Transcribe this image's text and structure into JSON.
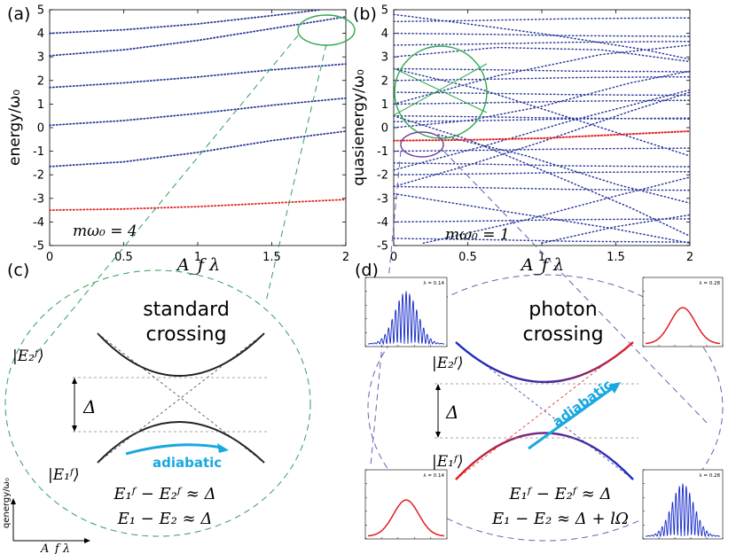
{
  "panels": {
    "a": {
      "label": "(a)",
      "ylabel": "energy/ω₀",
      "xlabel": "A_f λ",
      "annotation": "mω₀ = 4",
      "xticks": [
        "0",
        "0.5",
        "1",
        "1.5",
        "2"
      ],
      "yticks": [
        "5",
        "4",
        "3",
        "2",
        "1",
        "0",
        "-1",
        "-2",
        "-3",
        "-4",
        "-5"
      ]
    },
    "b": {
      "label": "(b)",
      "ylabel": "quasienergy/ω₀",
      "xlabel": "A_f λ",
      "annotation": "mω₀ = 1",
      "xticks": [
        "0",
        "0.5",
        "1",
        "1.5",
        "2"
      ],
      "yticks": [
        "5",
        "4",
        "3",
        "2",
        "1",
        "0",
        "-1",
        "-2",
        "-3",
        "-4",
        "-5"
      ]
    },
    "c": {
      "label": "(c)",
      "title_line1": "standard",
      "title_line2": "crossing",
      "upper_state": "|E₂ᶠ⟩",
      "lower_state": "|E₁ᶠ⟩",
      "gap": "Δ",
      "adiabatic": "adiabatic",
      "eq1": "E₁ᶠ − E₂ᶠ ≈ Δ",
      "eq2": "E₁ − E₂ ≈ Δ",
      "axis_y": "qenergy/ω₀",
      "axis_x": "A_f λ"
    },
    "d": {
      "label": "(d)",
      "title_line1": "photon",
      "title_line2": "crossing",
      "upper_state": "|E₂ᶠ⟩",
      "lower_state": "|E₁ᶠ⟩",
      "gap": "Δ",
      "adiabatic": "adiabatic",
      "eq1": "E₁ᶠ − E₂ᶠ ≈ Δ",
      "eq2": "E₁ − E₂ ≈ Δ + lΩ",
      "insets": [
        {
          "lambda": "λ = 0.14",
          "kind": "comb"
        },
        {
          "lambda": "λ = 0.28",
          "kind": "gauss"
        },
        {
          "lambda": "λ = 0.14",
          "kind": "gauss"
        },
        {
          "lambda": "λ = 0.28",
          "kind": "comb"
        }
      ]
    }
  },
  "colors": {
    "blue": "#2b3a9a",
    "red": "#e21f1f",
    "green": "#2fa84f",
    "purple": "#7a3f9a",
    "green_dash": "#2f9e5a",
    "purple_dash": "#6a5fb0",
    "cyan": "#19a8e0",
    "spectrum_blue": "#1428c8"
  },
  "chart_data": [
    {
      "type": "line",
      "title": "(a)",
      "xlabel": "A_f λ",
      "ylabel": "energy/ω₀",
      "xlim": [
        0,
        2
      ],
      "ylim": [
        -5,
        5
      ],
      "series": [
        {
          "x": [
            0,
            0.5,
            1,
            1.5,
            1.83
          ],
          "values": [
            4.0,
            4.15,
            4.4,
            4.75,
            5.0
          ]
        },
        {
          "x": [
            0,
            0.5,
            1,
            1.5,
            2
          ],
          "values": [
            3.05,
            3.3,
            3.7,
            4.2,
            4.7
          ]
        },
        {
          "x": [
            0,
            0.5,
            1,
            1.5,
            2
          ],
          "values": [
            1.7,
            1.9,
            2.15,
            2.45,
            2.7
          ]
        },
        {
          "x": [
            0,
            0.5,
            1,
            1.5,
            2
          ],
          "values": [
            0.1,
            0.3,
            0.6,
            0.95,
            1.25
          ]
        },
        {
          "x": [
            0,
            0.5,
            1,
            1.5,
            2
          ],
          "values": [
            -1.65,
            -1.45,
            -1.05,
            -0.55,
            -0.15
          ]
        },
        {
          "x": [
            0,
            0.5,
            1,
            1.5,
            2
          ],
          "values": [
            -3.5,
            -3.45,
            -3.35,
            -3.2,
            -3.05
          ]
        }
      ]
    },
    {
      "type": "scatter",
      "title": "(b)",
      "xlabel": "A_f λ",
      "ylabel": "quasienergy/ω₀",
      "xlim": [
        0,
        2
      ],
      "ylim": [
        -5,
        5
      ],
      "series": [
        {
          "x": [
            0,
            0.5,
            1,
            1.5,
            2
          ],
          "values": [
            -0.55,
            -0.52,
            -0.45,
            -0.3,
            -0.15
          ]
        }
      ]
    }
  ]
}
